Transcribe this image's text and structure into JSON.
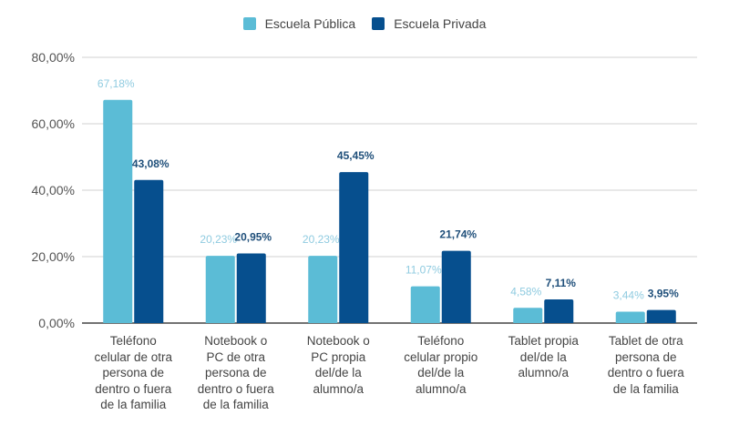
{
  "chart_data": {
    "type": "bar",
    "title": "",
    "xlabel": "",
    "ylabel": "",
    "ylim": [
      0,
      80
    ],
    "yticks": [
      0,
      20,
      40,
      60,
      80
    ],
    "ytick_labels": [
      "0,00%",
      "20,00%",
      "40,00%",
      "60,00%",
      "80,00%"
    ],
    "grid": true,
    "legend_position": "top-center",
    "categories": [
      "Teléfono celular de otra persona de dentro o fuera de la familia",
      "Notebook o PC de otra persona de dentro o fuera de la familia",
      "Notebook o PC propia del/de la alumno/a",
      "Teléfono celular propio del/de la alumno/a",
      "Tablet propia del/de la alumno/a",
      "Tablet de otra persona de dentro o fuera de la familia"
    ],
    "category_lines": [
      [
        "Teléfono",
        "celular de otra",
        "persona de",
        "dentro o fuera",
        "de la familia"
      ],
      [
        "Notebook o",
        "PC de otra",
        "persona de",
        "dentro o fuera",
        "de la familia"
      ],
      [
        "Notebook o",
        "PC propia",
        "del/de la",
        "alumno/a"
      ],
      [
        "Teléfono",
        "celular propio",
        "del/de la",
        "alumno/a"
      ],
      [
        "Tablet propia",
        "del/de la",
        "alumno/a"
      ],
      [
        "Tablet de otra",
        "persona de",
        "dentro o fuera",
        "de la familia"
      ]
    ],
    "series": [
      {
        "name": "Escuela Pública",
        "color": "#5bbcd6",
        "label_color": "#8fcbe0",
        "values": [
          67.18,
          20.23,
          20.23,
          11.07,
          4.58,
          3.44
        ],
        "labels": [
          "67,18%",
          "20,23%",
          "20,23%",
          "11,07%",
          "4,58%",
          "3,44%"
        ]
      },
      {
        "name": "Escuela Privada",
        "color": "#064f8e",
        "label_color": "#1f4f7a",
        "values": [
          43.08,
          20.95,
          45.45,
          21.74,
          7.11,
          3.95
        ],
        "labels": [
          "43,08%",
          "20,95%",
          "45,45%",
          "21,74%",
          "7,11%",
          "3,95%"
        ]
      }
    ]
  }
}
